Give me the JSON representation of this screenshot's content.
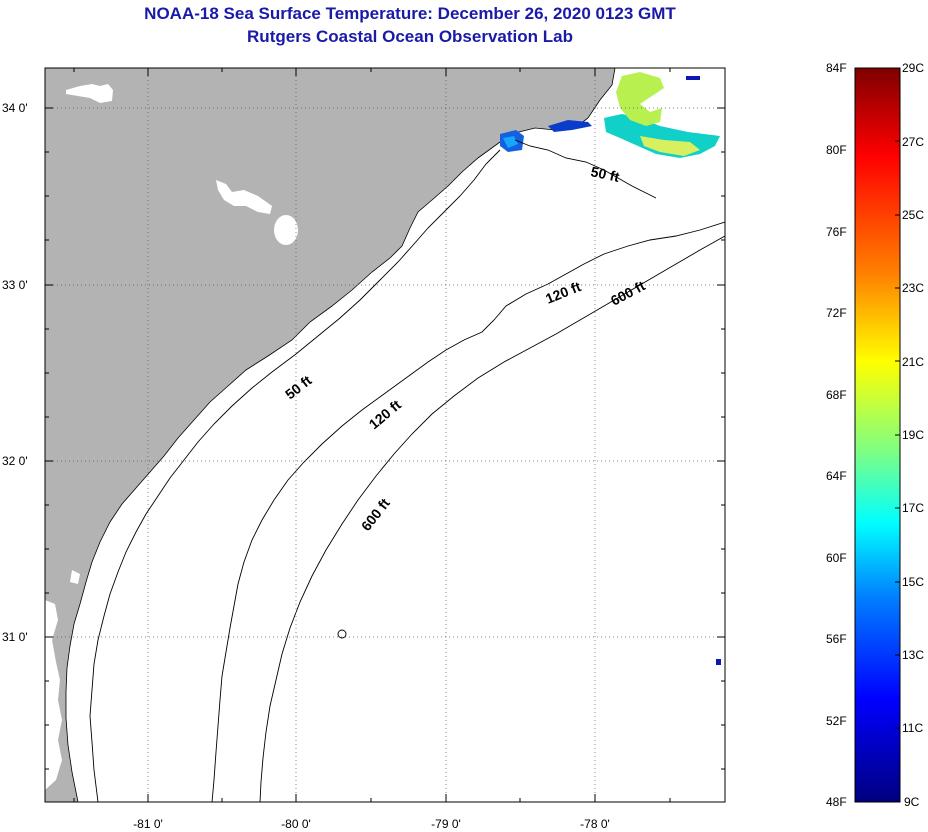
{
  "title_line1": "NOAA-18 Sea Surface Temperature:  December 26, 2020 0123 GMT",
  "title_line2": "Rutgers Coastal Ocean Observation Lab",
  "longitude_labels": [
    "-81 0'",
    "-80 0'",
    "-79 0'",
    "-78 0'"
  ],
  "latitude_labels": [
    "34 0'",
    "33 0'",
    "32 0'",
    "31 0'"
  ],
  "contour_labels": {
    "c50_north": "50 ft",
    "c50_mid": "50 ft",
    "c120_north": "120 ft",
    "c120_mid": "120 ft",
    "c600_north": "600 ft",
    "c600_south": "600 ft"
  },
  "colorbar": {
    "fahrenheit_labels": [
      "84F",
      "80F",
      "76F",
      "72F",
      "68F",
      "64F",
      "60F",
      "56F",
      "52F",
      "48F"
    ],
    "celsius_labels": [
      "29C",
      "27C",
      "25C",
      "23C",
      "21C",
      "19C",
      "17C",
      "15C",
      "13C",
      "11C",
      "9C"
    ],
    "colors": [
      "#7f0000",
      "#ff0000",
      "#ff8000",
      "#ffff00",
      "#80ff80",
      "#00ffff",
      "#0080ff",
      "#0000ff",
      "#00007f"
    ]
  },
  "colors": {
    "land": "#b3b3b3",
    "ocean": "#ffffff",
    "title": "#1a1aa8"
  }
}
